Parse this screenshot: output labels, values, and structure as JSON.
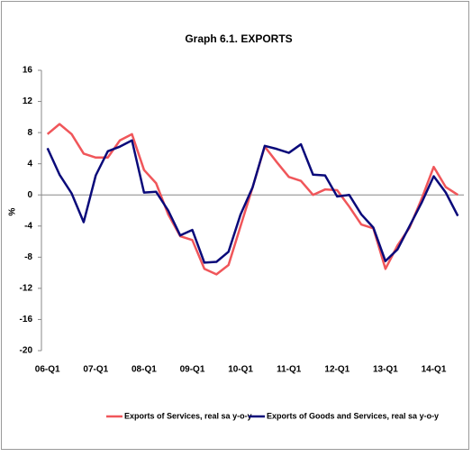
{
  "chart_data": {
    "type": "line",
    "title": "Graph 6.1. EXPORTS",
    "y_label": "%",
    "categories": [
      "06-Q1",
      null,
      null,
      null,
      "07-Q1",
      null,
      null,
      null,
      "08-Q1",
      null,
      null,
      null,
      "09-Q1",
      null,
      null,
      null,
      "10-Q1",
      null,
      null,
      null,
      "11-Q1",
      null,
      null,
      null,
      "12-Q1",
      null,
      null,
      null,
      "13-Q1",
      null,
      null,
      null,
      "14-Q1",
      null,
      null
    ],
    "series": [
      {
        "name": "Exports of Services, real sa y-o-y",
        "color": "#f0565a",
        "values": [
          7.8,
          9.1,
          7.8,
          5.3,
          4.8,
          4.8,
          7.0,
          7.8,
          3.2,
          1.5,
          -2.5,
          -5.3,
          -5.8,
          -9.5,
          -10.2,
          -9.0,
          -4.0,
          1.0,
          6.2,
          4.2,
          2.3,
          1.8,
          0.0,
          0.7,
          0.6,
          -1.5,
          -3.8,
          -4.3,
          -9.5,
          -6.5,
          -4.2,
          -0.5,
          3.6,
          1.0,
          0.0
        ]
      },
      {
        "name": "Exports of Goods and Services, real sa y-o-y",
        "color": "#0a0a7a",
        "values": [
          6.0,
          2.6,
          0.2,
          -3.5,
          2.5,
          5.6,
          6.2,
          7.0,
          0.3,
          0.4,
          -2.0,
          -5.2,
          -4.5,
          -8.7,
          -8.6,
          -7.3,
          -2.5,
          1.0,
          6.3,
          5.9,
          5.4,
          6.5,
          2.6,
          2.5,
          -0.2,
          0.0,
          -2.5,
          -4.2,
          -8.5,
          -7.0,
          -4.0,
          -1.0,
          2.4,
          0.3,
          -2.7
        ]
      }
    ],
    "ylim": [
      -20,
      16
    ],
    "yticks": [
      -20,
      -16,
      -12,
      -8,
      -4,
      0,
      4,
      8,
      12,
      16
    ],
    "grid": false
  }
}
